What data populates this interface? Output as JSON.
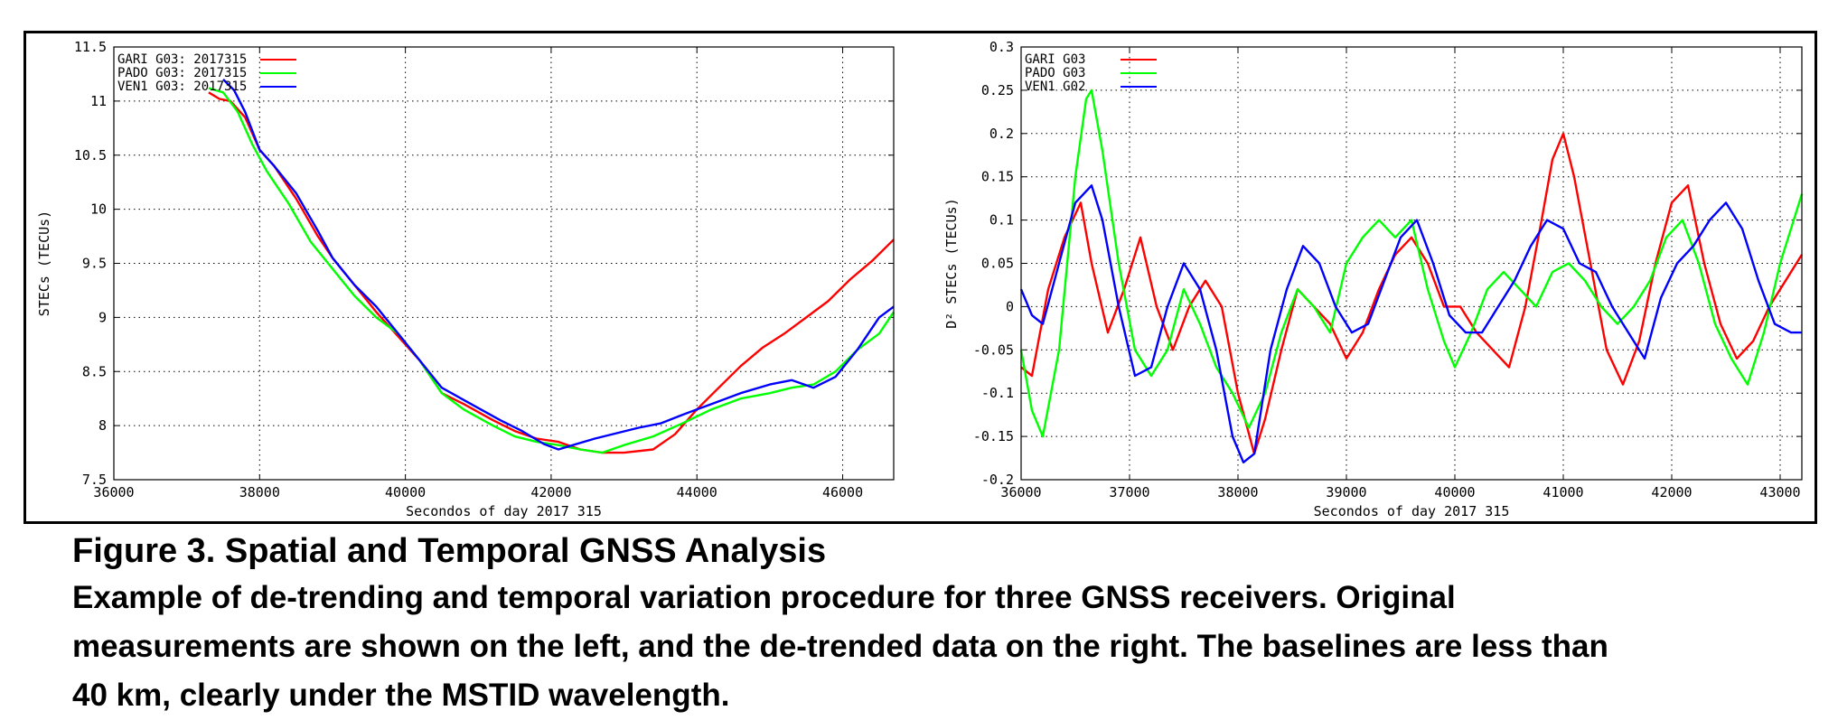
{
  "chart_data": [
    {
      "type": "line",
      "xlabel": "Secondos of day 2017 315",
      "ylabel": "STECs (TECUs)",
      "xlim": [
        36000,
        46700
      ],
      "ylim": [
        7.5,
        11.5
      ],
      "xticks": [
        "36000",
        "38000",
        "40000",
        "42000",
        "44000",
        "46000"
      ],
      "xtick_values": [
        36000,
        38000,
        40000,
        42000,
        44000,
        46000
      ],
      "yticks": [
        "7.5",
        "8",
        "8.5",
        "9",
        "9.5",
        "10",
        "10.5",
        "11",
        "11.5"
      ],
      "ytick_values": [
        7.5,
        8,
        8.5,
        9,
        9.5,
        10,
        10.5,
        11,
        11.5
      ],
      "grid": true,
      "legend_position": "top-left",
      "series": [
        {
          "name": "GARI G03: 2017315",
          "color": "#ff0000",
          "x": [
            37300,
            37450,
            37600,
            37800,
            38000,
            38200,
            38500,
            38800,
            39000,
            39300,
            39600,
            39800,
            40200,
            40500,
            40800,
            41200,
            41500,
            41800,
            42100,
            42400,
            42700,
            43000,
            43400,
            43700,
            44000,
            44300,
            44600,
            44900,
            45200,
            45500,
            45800,
            46100,
            46400,
            46700
          ],
          "y": [
            11.08,
            11.02,
            11.0,
            10.85,
            10.55,
            10.4,
            10.1,
            9.75,
            9.55,
            9.3,
            9.05,
            8.9,
            8.6,
            8.3,
            8.2,
            8.05,
            7.95,
            7.88,
            7.85,
            7.78,
            7.75,
            7.75,
            7.78,
            7.92,
            8.15,
            8.35,
            8.55,
            8.72,
            8.85,
            9.0,
            9.15,
            9.35,
            9.52,
            9.72
          ]
        },
        {
          "name": "PADO G03: 2017315",
          "color": "#00ff00",
          "x": [
            37300,
            37500,
            37700,
            37900,
            38100,
            38400,
            38700,
            39000,
            39300,
            39600,
            39900,
            40200,
            40500,
            40800,
            41200,
            41500,
            41800,
            42100,
            42400,
            42700,
            43000,
            43400,
            43800,
            44200,
            44600,
            45000,
            45300,
            45600,
            45900,
            46200,
            46500,
            46700
          ],
          "y": [
            11.12,
            11.08,
            10.9,
            10.6,
            10.35,
            10.05,
            9.7,
            9.45,
            9.2,
            9.0,
            8.85,
            8.6,
            8.3,
            8.15,
            8.0,
            7.9,
            7.85,
            7.82,
            7.78,
            7.75,
            7.82,
            7.9,
            8.02,
            8.15,
            8.25,
            8.3,
            8.35,
            8.38,
            8.5,
            8.7,
            8.85,
            9.05
          ]
        },
        {
          "name": "VEN1 G03: 2017315",
          "color": "#0000ff",
          "x": [
            37500,
            37650,
            37800,
            38000,
            38200,
            38500,
            38800,
            39000,
            39300,
            39600,
            39900,
            40200,
            40500,
            40900,
            41300,
            41600,
            41900,
            42100,
            42300,
            42600,
            42900,
            43200,
            43500,
            43800,
            44200,
            44600,
            45000,
            45300,
            45600,
            45900,
            46200,
            46500,
            46700
          ],
          "y": [
            11.2,
            11.1,
            10.9,
            10.55,
            10.4,
            10.15,
            9.8,
            9.55,
            9.3,
            9.1,
            8.85,
            8.6,
            8.35,
            8.2,
            8.05,
            7.95,
            7.83,
            7.78,
            7.82,
            7.88,
            7.93,
            7.98,
            8.02,
            8.1,
            8.2,
            8.3,
            8.38,
            8.42,
            8.35,
            8.45,
            8.7,
            9.0,
            9.1
          ]
        }
      ]
    },
    {
      "type": "line",
      "xlabel": "Secondos of day 2017 315",
      "ylabel": "D² STECs (TECUs)",
      "xlim": [
        36000,
        43200
      ],
      "ylim": [
        -0.2,
        0.3
      ],
      "xticks": [
        "36000",
        "37000",
        "38000",
        "39000",
        "40000",
        "41000",
        "42000",
        "43000"
      ],
      "xtick_values": [
        36000,
        37000,
        38000,
        39000,
        40000,
        41000,
        42000,
        43000
      ],
      "yticks": [
        "-0.2",
        "-0.15",
        "-0.1",
        "-0.05",
        "0",
        "0.05",
        "0.1",
        "0.15",
        "0.2",
        "0.25",
        "0.3"
      ],
      "ytick_values": [
        -0.2,
        -0.15,
        -0.1,
        -0.05,
        0,
        0.05,
        0.1,
        0.15,
        0.2,
        0.25,
        0.3
      ],
      "grid": true,
      "legend_position": "top-left",
      "series": [
        {
          "name": "GARI G03",
          "color": "#ff0000",
          "x": [
            36000,
            36100,
            36250,
            36400,
            36550,
            36650,
            36800,
            36950,
            37100,
            37250,
            37400,
            37550,
            37700,
            37850,
            38000,
            38150,
            38250,
            38400,
            38550,
            38700,
            38850,
            39000,
            39150,
            39300,
            39450,
            39600,
            39750,
            39900,
            40050,
            40200,
            40350,
            40500,
            40650,
            40800,
            40900,
            41000,
            41100,
            41250,
            41400,
            41550,
            41700,
            41850,
            42000,
            42150,
            42300,
            42450,
            42600,
            42750,
            42900,
            43050,
            43200
          ],
          "y": [
            -0.07,
            -0.08,
            0.02,
            0.08,
            0.12,
            0.05,
            -0.03,
            0.02,
            0.08,
            0.0,
            -0.05,
            0.0,
            0.03,
            0.0,
            -0.1,
            -0.17,
            -0.13,
            -0.05,
            0.02,
            0.0,
            -0.02,
            -0.06,
            -0.03,
            0.02,
            0.06,
            0.08,
            0.05,
            0.0,
            0.0,
            -0.03,
            -0.05,
            -0.07,
            0.0,
            0.1,
            0.17,
            0.2,
            0.15,
            0.05,
            -0.05,
            -0.09,
            -0.04,
            0.05,
            0.12,
            0.14,
            0.05,
            -0.02,
            -0.06,
            -0.04,
            0.0,
            0.03,
            0.06
          ]
        },
        {
          "name": "PADO G03",
          "color": "#00ff00",
          "x": [
            36000,
            36100,
            36200,
            36350,
            36500,
            36600,
            36650,
            36750,
            36900,
            37050,
            37200,
            37350,
            37500,
            37650,
            37800,
            37950,
            38100,
            38250,
            38400,
            38550,
            38700,
            38850,
            39000,
            39150,
            39300,
            39450,
            39600,
            39750,
            39900,
            40000,
            40150,
            40300,
            40450,
            40600,
            40750,
            40900,
            41050,
            41200,
            41350,
            41500,
            41650,
            41800,
            41950,
            42100,
            42250,
            42400,
            42550,
            42700,
            42850,
            43000,
            43200
          ],
          "y": [
            -0.05,
            -0.12,
            -0.15,
            -0.05,
            0.15,
            0.24,
            0.25,
            0.18,
            0.05,
            -0.05,
            -0.08,
            -0.05,
            0.02,
            -0.02,
            -0.07,
            -0.1,
            -0.14,
            -0.1,
            -0.03,
            0.02,
            0.0,
            -0.03,
            0.05,
            0.08,
            0.1,
            0.08,
            0.1,
            0.02,
            -0.04,
            -0.07,
            -0.03,
            0.02,
            0.04,
            0.02,
            0.0,
            0.04,
            0.05,
            0.03,
            0.0,
            -0.02,
            0.0,
            0.03,
            0.08,
            0.1,
            0.05,
            -0.02,
            -0.06,
            -0.09,
            -0.03,
            0.05,
            0.13
          ]
        },
        {
          "name": "VEN1 G02",
          "color": "#0000ff",
          "x": [
            36000,
            36100,
            36200,
            36350,
            36500,
            36650,
            36750,
            36900,
            37050,
            37200,
            37350,
            37500,
            37650,
            37800,
            37950,
            38050,
            38150,
            38300,
            38450,
            38600,
            38750,
            38900,
            39050,
            39200,
            39350,
            39500,
            39650,
            39800,
            39950,
            40100,
            40250,
            40400,
            40550,
            40700,
            40850,
            41000,
            41150,
            41300,
            41450,
            41600,
            41750,
            41900,
            42050,
            42200,
            42350,
            42500,
            42650,
            42800,
            42950,
            43100,
            43200
          ],
          "y": [
            0.02,
            -0.01,
            -0.02,
            0.05,
            0.12,
            0.14,
            0.1,
            0.0,
            -0.08,
            -0.07,
            0.0,
            0.05,
            0.02,
            -0.05,
            -0.15,
            -0.18,
            -0.17,
            -0.05,
            0.02,
            0.07,
            0.05,
            0.0,
            -0.03,
            -0.02,
            0.03,
            0.08,
            0.1,
            0.05,
            -0.01,
            -0.03,
            -0.03,
            0.0,
            0.03,
            0.07,
            0.1,
            0.09,
            0.05,
            0.04,
            0.0,
            -0.03,
            -0.06,
            0.01,
            0.05,
            0.07,
            0.1,
            0.12,
            0.09,
            0.03,
            -0.02,
            -0.03,
            -0.03
          ]
        }
      ]
    }
  ],
  "caption": {
    "title": "Figure 3. Spatial and Temporal GNSS Analysis",
    "lines": [
      "Example of de-trending and temporal variation procedure for three GNSS receivers. Original",
      "measurements are shown on the left, and the de-trended data on the right. The baselines are less than",
      "40 km, clearly under the MSTID wavelength."
    ]
  }
}
